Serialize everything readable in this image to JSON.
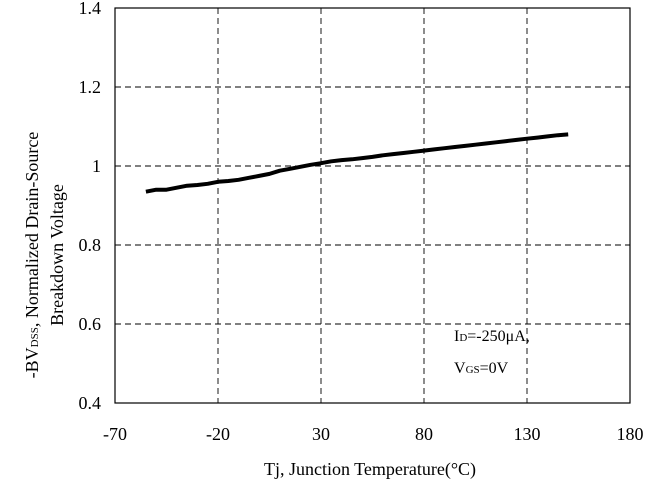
{
  "chart_data": {
    "type": "line",
    "xlabel": "Tj, Junction Temperature(°C)",
    "ylabel_line1": "-BV",
    "ylabel_line1_sub": "DSS",
    "ylabel_line1_rest": ", Normalized Drain-Source",
    "ylabel_line2": "Breakdown Voltage",
    "xlim": [
      -70,
      180
    ],
    "ylim": [
      0.4,
      1.4
    ],
    "xticks": [
      -70,
      -20,
      30,
      80,
      130,
      180
    ],
    "xtick_labels": [
      "-70",
      "-20",
      "30",
      "80",
      "130",
      "180"
    ],
    "yticks": [
      0.4,
      0.6,
      0.8,
      1.0,
      1.2,
      1.4
    ],
    "ytick_labels": [
      "0.4",
      "0.6",
      "0.8",
      "1",
      "1.2",
      "1.4"
    ],
    "grid": "dashed",
    "series": [
      {
        "x": [
          -55,
          -50,
          -45,
          -40,
          -35,
          -30,
          -25,
          -20,
          -15,
          -10,
          -5,
          0,
          5,
          10,
          15,
          20,
          25,
          30,
          35,
          40,
          45,
          50,
          55,
          60,
          65,
          70,
          75,
          80,
          85,
          90,
          95,
          100,
          105,
          110,
          115,
          120,
          125,
          130,
          135,
          140,
          145,
          150
        ],
        "y": [
          0.935,
          0.94,
          0.94,
          0.945,
          0.95,
          0.952,
          0.955,
          0.96,
          0.962,
          0.965,
          0.97,
          0.975,
          0.98,
          0.988,
          0.993,
          0.998,
          1.003,
          1.007,
          1.012,
          1.015,
          1.017,
          1.02,
          1.023,
          1.027,
          1.03,
          1.033,
          1.036,
          1.039,
          1.042,
          1.045,
          1.048,
          1.051,
          1.054,
          1.057,
          1.06,
          1.063,
          1.066,
          1.069,
          1.072,
          1.075,
          1.078,
          1.08
        ]
      }
    ],
    "annotation": {
      "line1_main": "I",
      "line1_sub": "D",
      "line1_rest": "=-250μA,",
      "line2_main": "V",
      "line2_sub": "GS",
      "line2_rest": "=0V"
    }
  }
}
